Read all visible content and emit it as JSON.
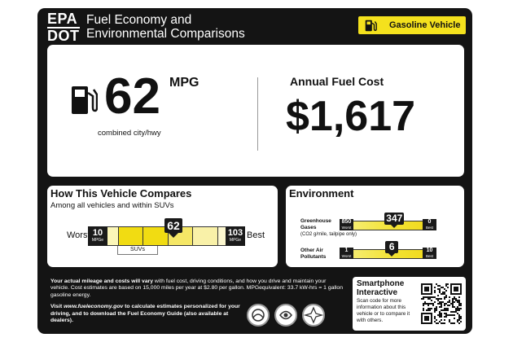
{
  "header": {
    "agency_line1": "EPA",
    "agency_line2": "DOT",
    "title_line1": "Fuel Economy and",
    "title_line2": "Environmental Comparisons",
    "vehicle_type": "Gasoline Vehicle",
    "icon": "fuel-pump-icon"
  },
  "fuel_economy": {
    "mpg": "62",
    "mpg_unit": "MPG",
    "mpg_caption": "combined city/hwy",
    "icon": "fuel-pump-icon"
  },
  "annual_cost": {
    "label": "Annual Fuel Cost",
    "value": "$1,617"
  },
  "comparison": {
    "title": "How This Vehicle Compares",
    "subtitle": "Among all vehicles and within SUVs",
    "worst_label": "Worst",
    "best_label": "Best",
    "scale_min": "10",
    "scale_max": "103",
    "scale_unit": "MPGe",
    "value": "62",
    "value_number": 62,
    "range_min_number": 10,
    "range_max_number": 103,
    "class_label": "SUVs"
  },
  "environment": {
    "title": "Environment",
    "ghg": {
      "label_line1": "Greenhouse",
      "label_line2": "Gases",
      "label_sub": "(CO2 g/mile, tailpipe only)",
      "worst_value": "850",
      "best_value": "0",
      "value": "347",
      "value_number": 347,
      "worst_text": "Worst",
      "best_text": "Best"
    },
    "smog": {
      "label_line1": "Other Air",
      "label_line2": "Pollutants",
      "worst_value": "1",
      "best_value": "10",
      "value": "6",
      "value_number": 6,
      "worst_text": "Worst",
      "best_text": "Best"
    }
  },
  "footer": {
    "para1_bold": "Your actual mileage and costs will vary",
    "para1_rest": " with fuel cost, driving conditions, and how you drive and maintain your vehicle. Cost estimates are based on 15,000 miles per year at $2.80 per gallon. MPGequivalent: 33.7 kW-hrs = 1 gallon gasoline energy.",
    "para2_start": "Visit ",
    "para2_url": "www.fueleconomy.gov",
    "para2_rest": " to calculate estimates personalized for your driving, and to download the Fuel Economy Guide (also available at dealers)."
  },
  "smartphone": {
    "title_line1": "Smartphone",
    "title_line2": "Interactive",
    "text": "Scan code for more information about this vehicle or to compare it with others."
  }
}
